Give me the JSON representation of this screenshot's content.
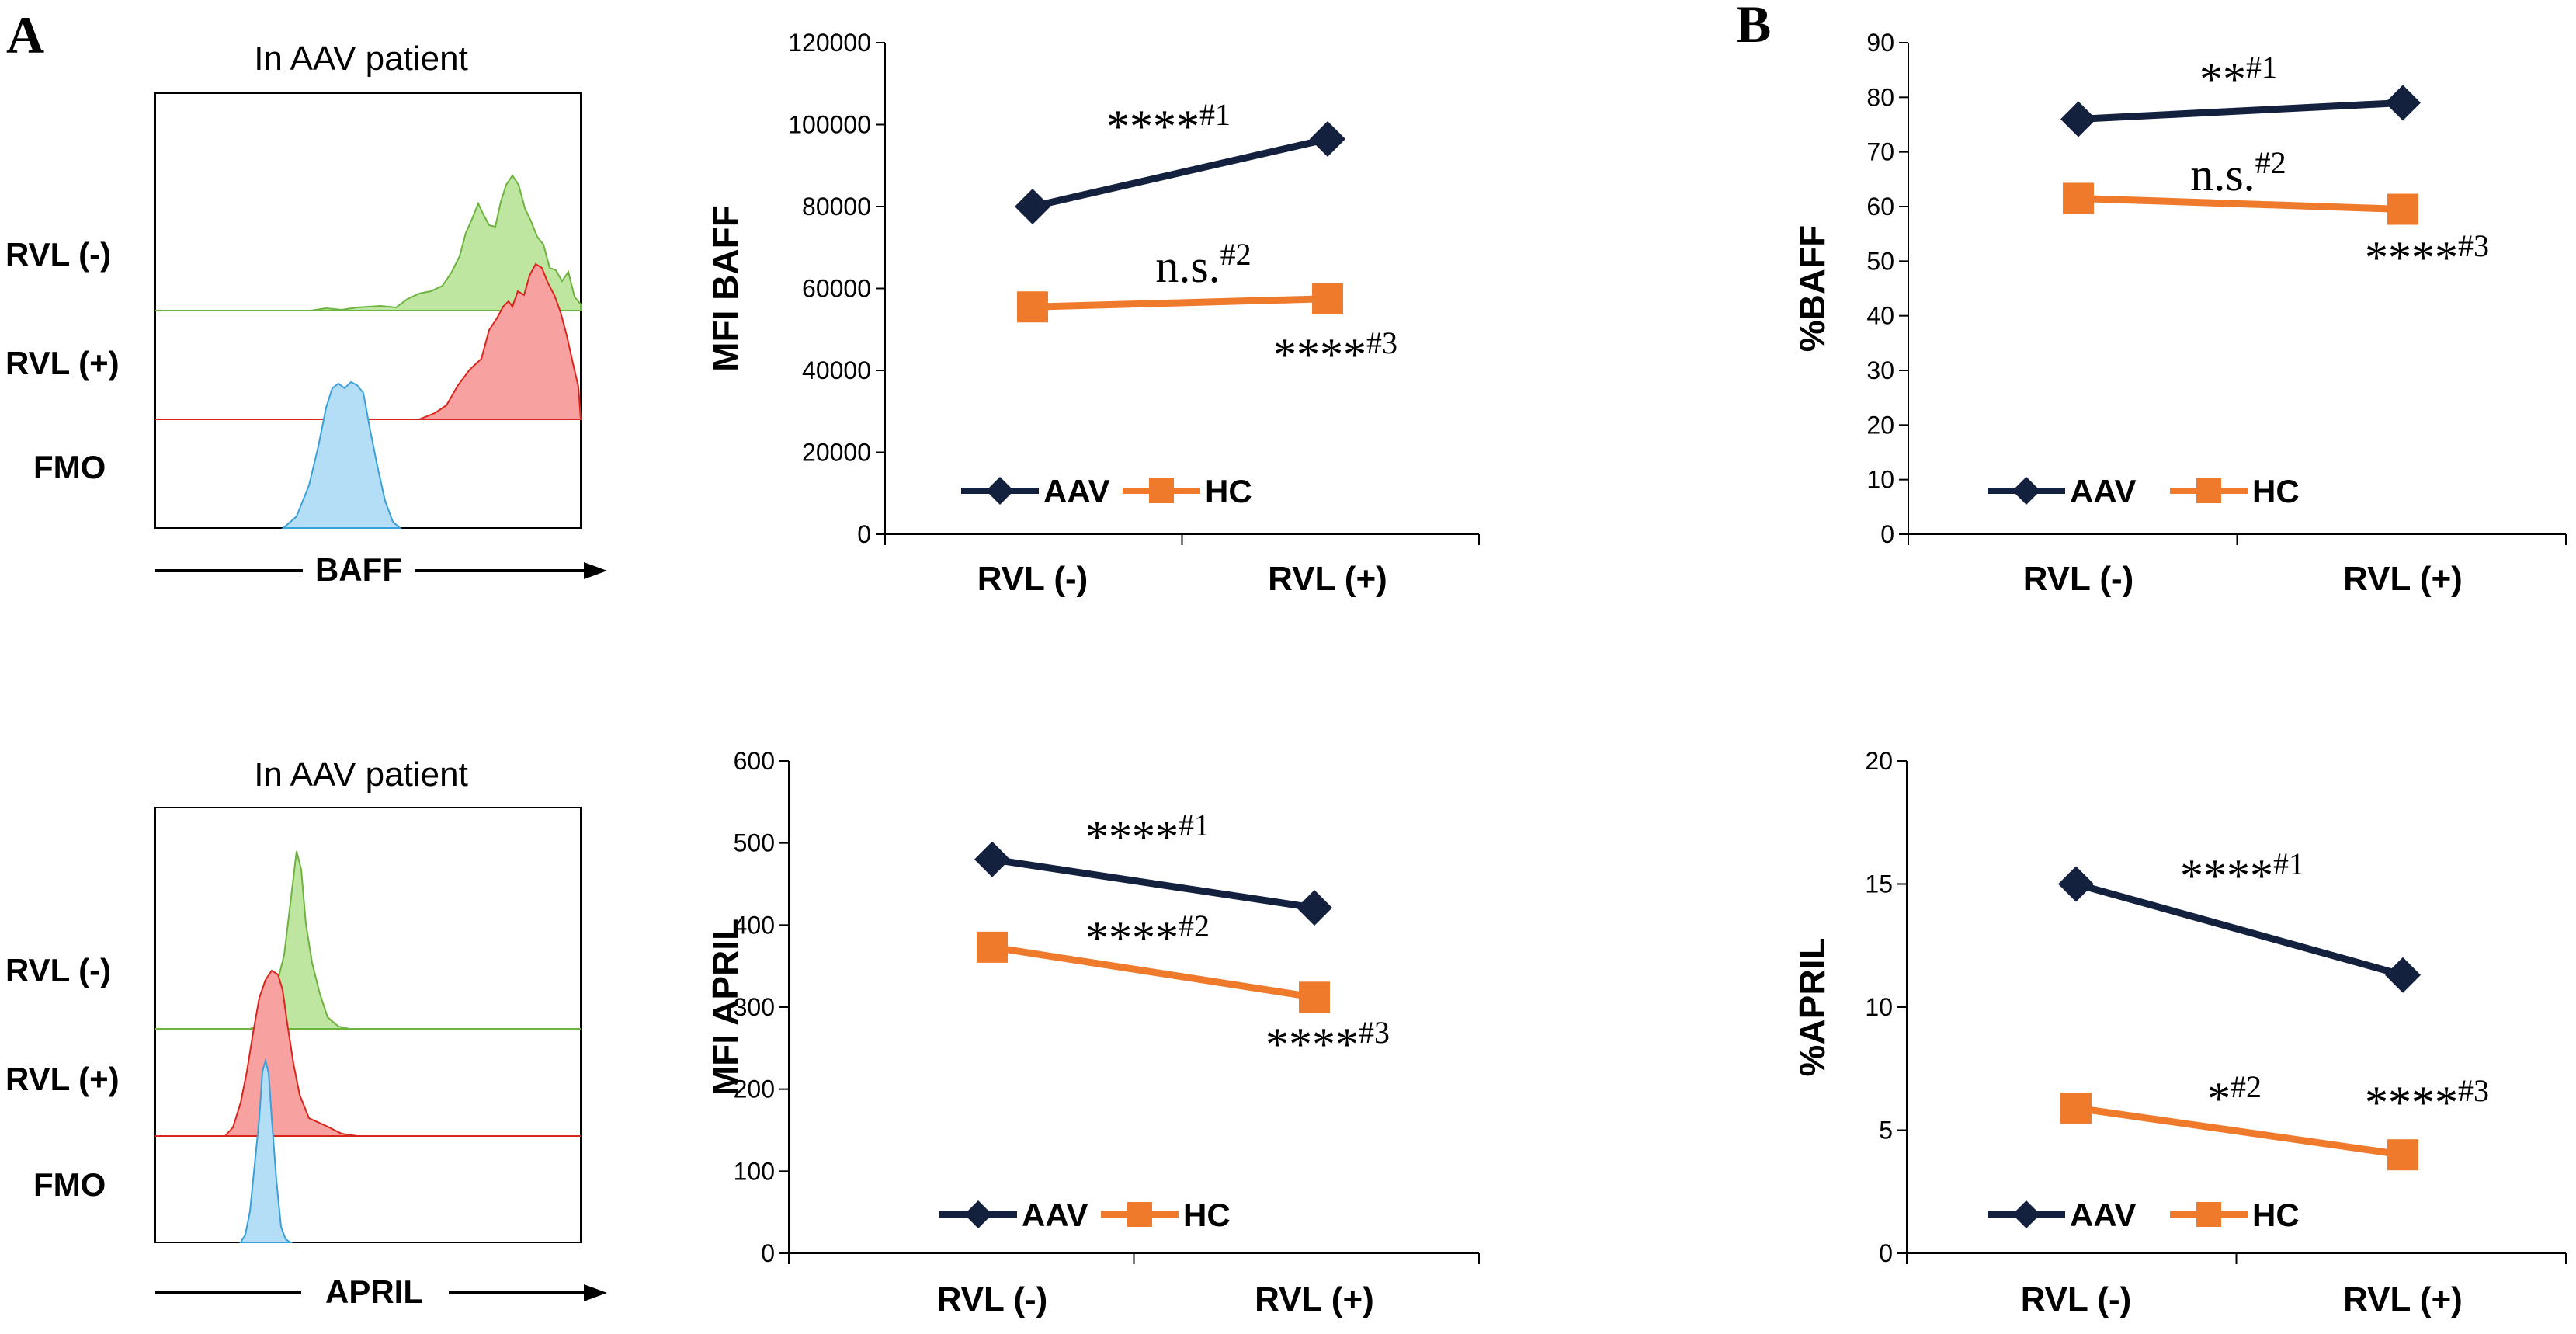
{
  "panels": {
    "a": "A",
    "b": "B"
  },
  "histograms": [
    {
      "title": "In AAV patient",
      "xlabel": "BAFF",
      "rows": [
        "RVL (-)",
        "RVL (+)",
        "FMO"
      ]
    },
    {
      "title": "In AAV patient",
      "xlabel": "APRIL",
      "rows": [
        "RVL (-)",
        "RVL (+)",
        "FMO"
      ]
    }
  ],
  "colors": {
    "aav": "#13213f",
    "hc": "#f07a2c",
    "hist_green_fill": "#bfe6a0",
    "hist_green_line": "#6db33f",
    "hist_red_fill": "#f7a1a1",
    "hist_red_line": "#d9261c",
    "hist_blue_fill": "#b4def6",
    "hist_blue_line": "#3aa0d8"
  },
  "chart_data": [
    {
      "type": "line",
      "title": "",
      "ylabel": "MFI BAFF",
      "categories": [
        "RVL (-)",
        "RVL (+)"
      ],
      "ylim": [
        0,
        120000
      ],
      "yticks": [
        "0",
        "20000",
        "40000",
        "60000",
        "80000",
        "100000",
        "120000"
      ],
      "series": [
        {
          "name": "AAV",
          "values": [
            80000,
            96500
          ]
        },
        {
          "name": "HC",
          "values": [
            55500,
            57500
          ]
        }
      ],
      "annotations": [
        {
          "text": "****",
          "sup": "#1"
        },
        {
          "text": "n.s.",
          "sup": "#2"
        },
        {
          "text": "****",
          "sup": "#3"
        }
      ]
    },
    {
      "type": "line",
      "title": "",
      "ylabel": "%BAFF",
      "categories": [
        "RVL (-)",
        "RVL (+)"
      ],
      "ylim": [
        0,
        90
      ],
      "yticks": [
        "0",
        "10",
        "20",
        "30",
        "40",
        "50",
        "60",
        "70",
        "80",
        "90"
      ],
      "series": [
        {
          "name": "AAV",
          "values": [
            76,
            79
          ]
        },
        {
          "name": "HC",
          "values": [
            61.5,
            59.5
          ]
        }
      ],
      "annotations": [
        {
          "text": "**",
          "sup": "#1"
        },
        {
          "text": "n.s.",
          "sup": "#2"
        },
        {
          "text": "****",
          "sup": "#3"
        }
      ]
    },
    {
      "type": "line",
      "title": "",
      "ylabel": "MFI APRIL",
      "categories": [
        "RVL (-)",
        "RVL (+)"
      ],
      "ylim": [
        0,
        600
      ],
      "yticks": [
        "0",
        "100",
        "200",
        "300",
        "400",
        "500",
        "600"
      ],
      "series": [
        {
          "name": "AAV",
          "values": [
            480,
            421
          ]
        },
        {
          "name": "HC",
          "values": [
            373,
            312
          ]
        }
      ],
      "annotations": [
        {
          "text": "****",
          "sup": "#1"
        },
        {
          "text": "****",
          "sup": "#2"
        },
        {
          "text": "****",
          "sup": "#3"
        }
      ]
    },
    {
      "type": "line",
      "title": "",
      "ylabel": "%APRIL",
      "categories": [
        "RVL (-)",
        "RVL (+)"
      ],
      "ylim": [
        0,
        20
      ],
      "yticks": [
        "0",
        "5",
        "10",
        "15",
        "20"
      ],
      "series": [
        {
          "name": "AAV",
          "values": [
            15,
            11.3
          ]
        },
        {
          "name": "HC",
          "values": [
            5.9,
            4
          ]
        }
      ],
      "annotations": [
        {
          "text": "****",
          "sup": "#1"
        },
        {
          "text": "*",
          "sup": "#2"
        },
        {
          "text": "****",
          "sup": "#3"
        }
      ]
    }
  ]
}
